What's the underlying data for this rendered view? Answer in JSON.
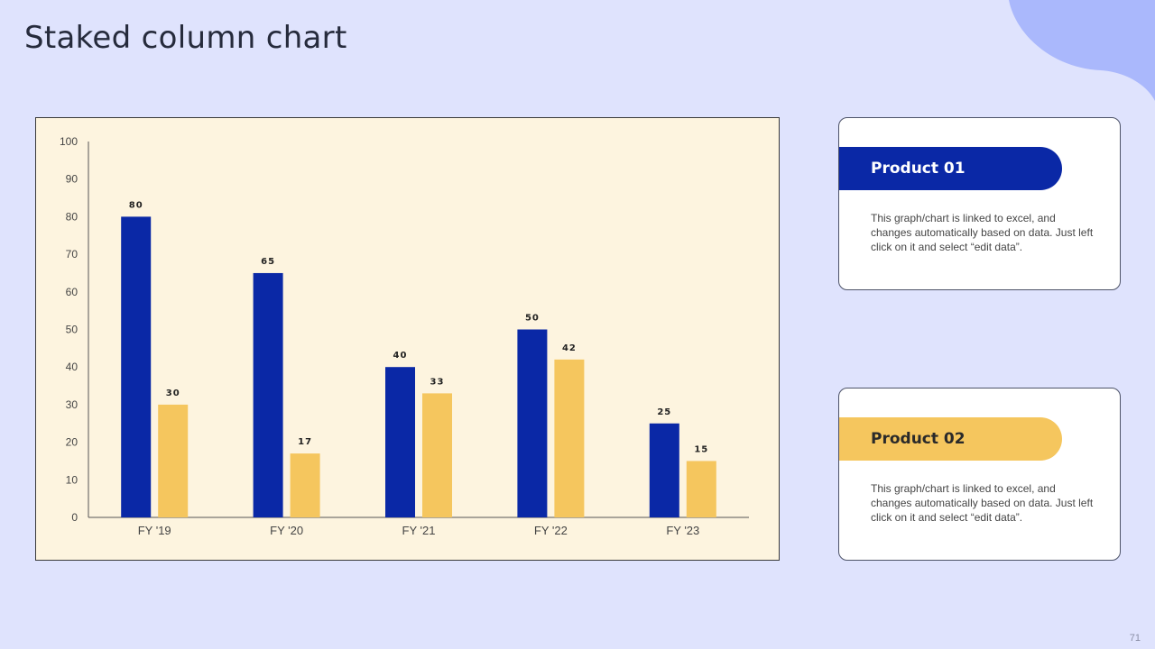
{
  "slide": {
    "title": "Staked column chart",
    "page_number": "71"
  },
  "colors": {
    "background": "#dfe3fd",
    "panel": "#fdf4df",
    "series_1": "#0a28a6",
    "series_2": "#f5c65e",
    "accent_blob": "#aab8fc"
  },
  "chart_data": {
    "type": "bar",
    "categories": [
      "FY '19",
      "FY '20",
      "FY '21",
      "FY '22",
      "FY '23"
    ],
    "series": [
      {
        "values": [
          80,
          65,
          40,
          50,
          25
        ],
        "color": "#0a28a6"
      },
      {
        "values": [
          30,
          17,
          33,
          42,
          15
        ],
        "color": "#f5c65e"
      }
    ],
    "ylim": [
      0,
      100
    ],
    "yticks": [
      0,
      10,
      20,
      30,
      40,
      50,
      60,
      70,
      80,
      90,
      100
    ],
    "data_labels": true,
    "grid": false,
    "legend": "none"
  },
  "cards": [
    {
      "label": "Product 01",
      "text": "This graph/chart is linked to excel, and changes automatically based on data. Just left click on it and select “edit data”."
    },
    {
      "label": "Product 02",
      "text": "This graph/chart is linked to excel, and changes automatically based on data. Just left click on it and select “edit data”."
    }
  ]
}
